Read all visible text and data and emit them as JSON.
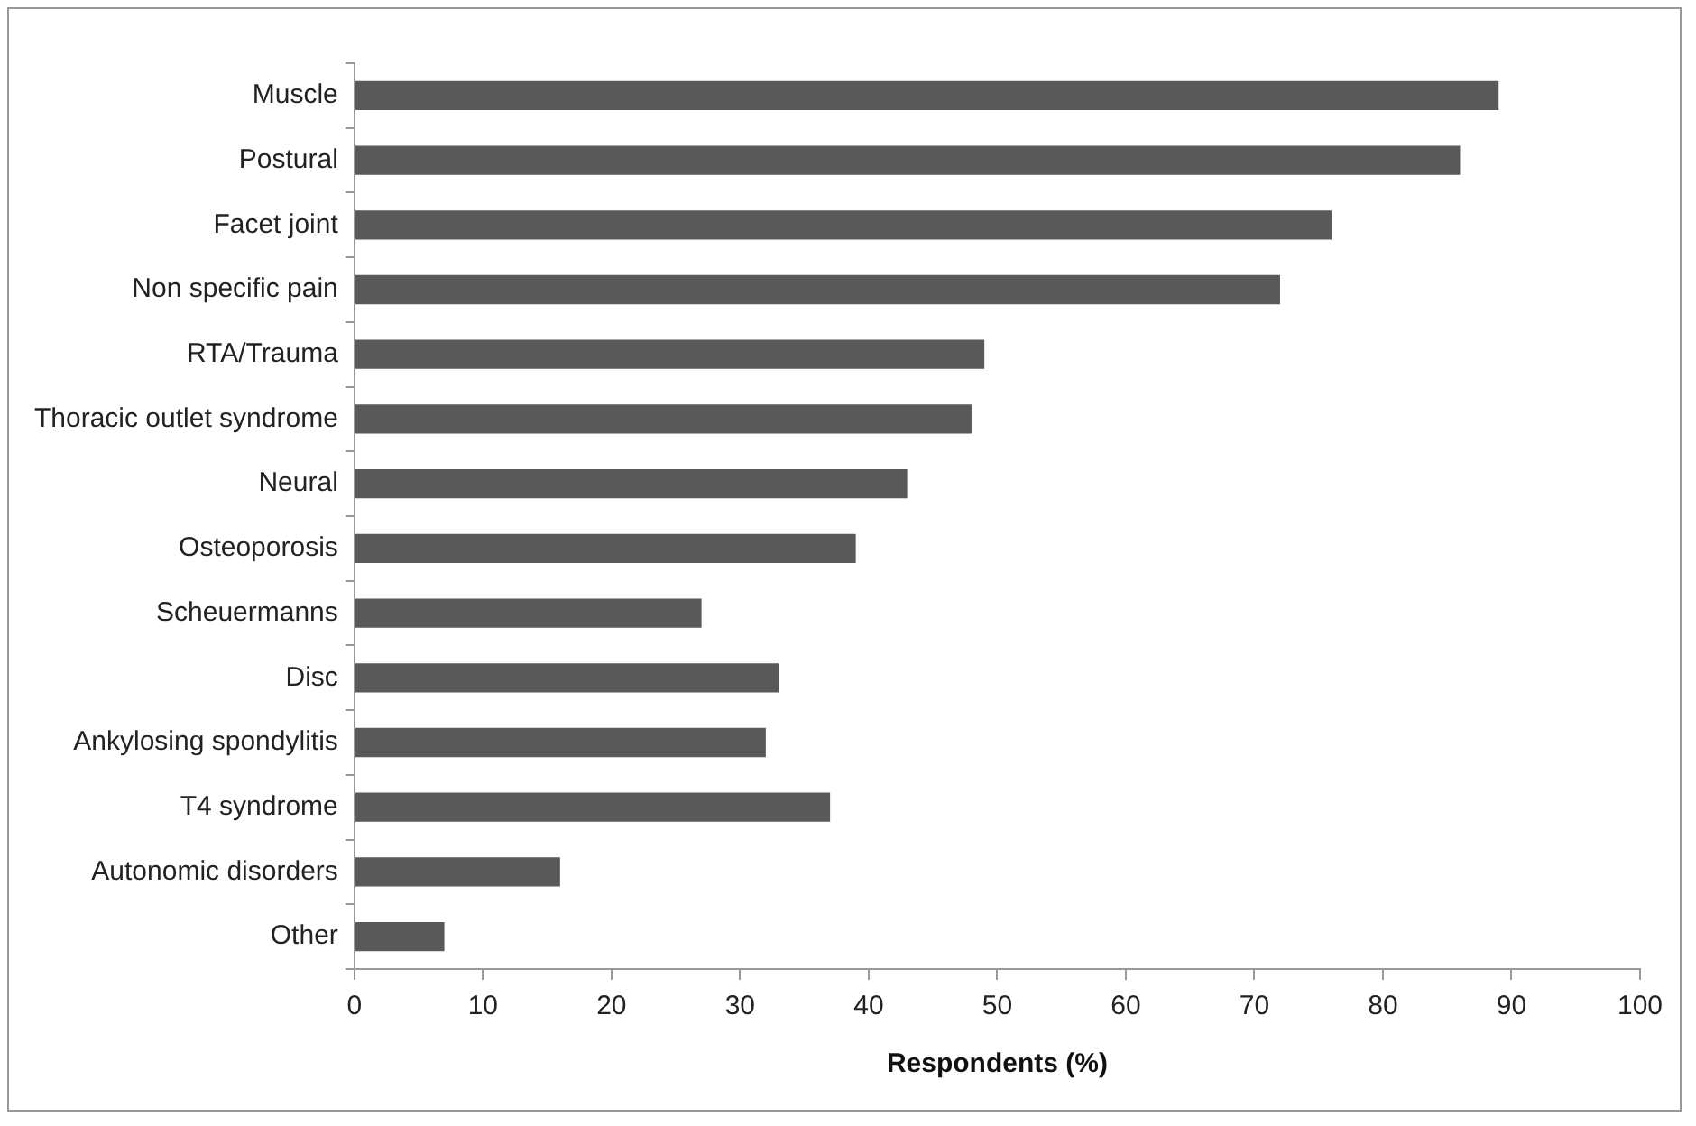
{
  "chart_data": {
    "type": "bar",
    "orientation": "horizontal",
    "xlabel": "Respondents (%)",
    "categories": [
      "Muscle",
      "Postural",
      "Facet joint",
      "Non specific pain",
      "RTA/Trauma",
      "Thoracic outlet syndrome",
      "Neural",
      "Osteoporosis",
      "Scheuermanns",
      "Disc",
      "Ankylosing spondylitis",
      "T4 syndrome",
      "Autonomic disorders",
      "Other"
    ],
    "values": [
      89,
      86,
      76,
      72,
      49,
      48,
      43,
      39,
      27,
      33,
      32,
      37,
      16,
      7
    ],
    "color": "#595959",
    "xlim": [
      0,
      100
    ],
    "xticks": [
      0,
      10,
      20,
      30,
      40,
      50,
      60,
      70,
      80,
      90,
      100
    ],
    "grid": false,
    "legend": false
  }
}
